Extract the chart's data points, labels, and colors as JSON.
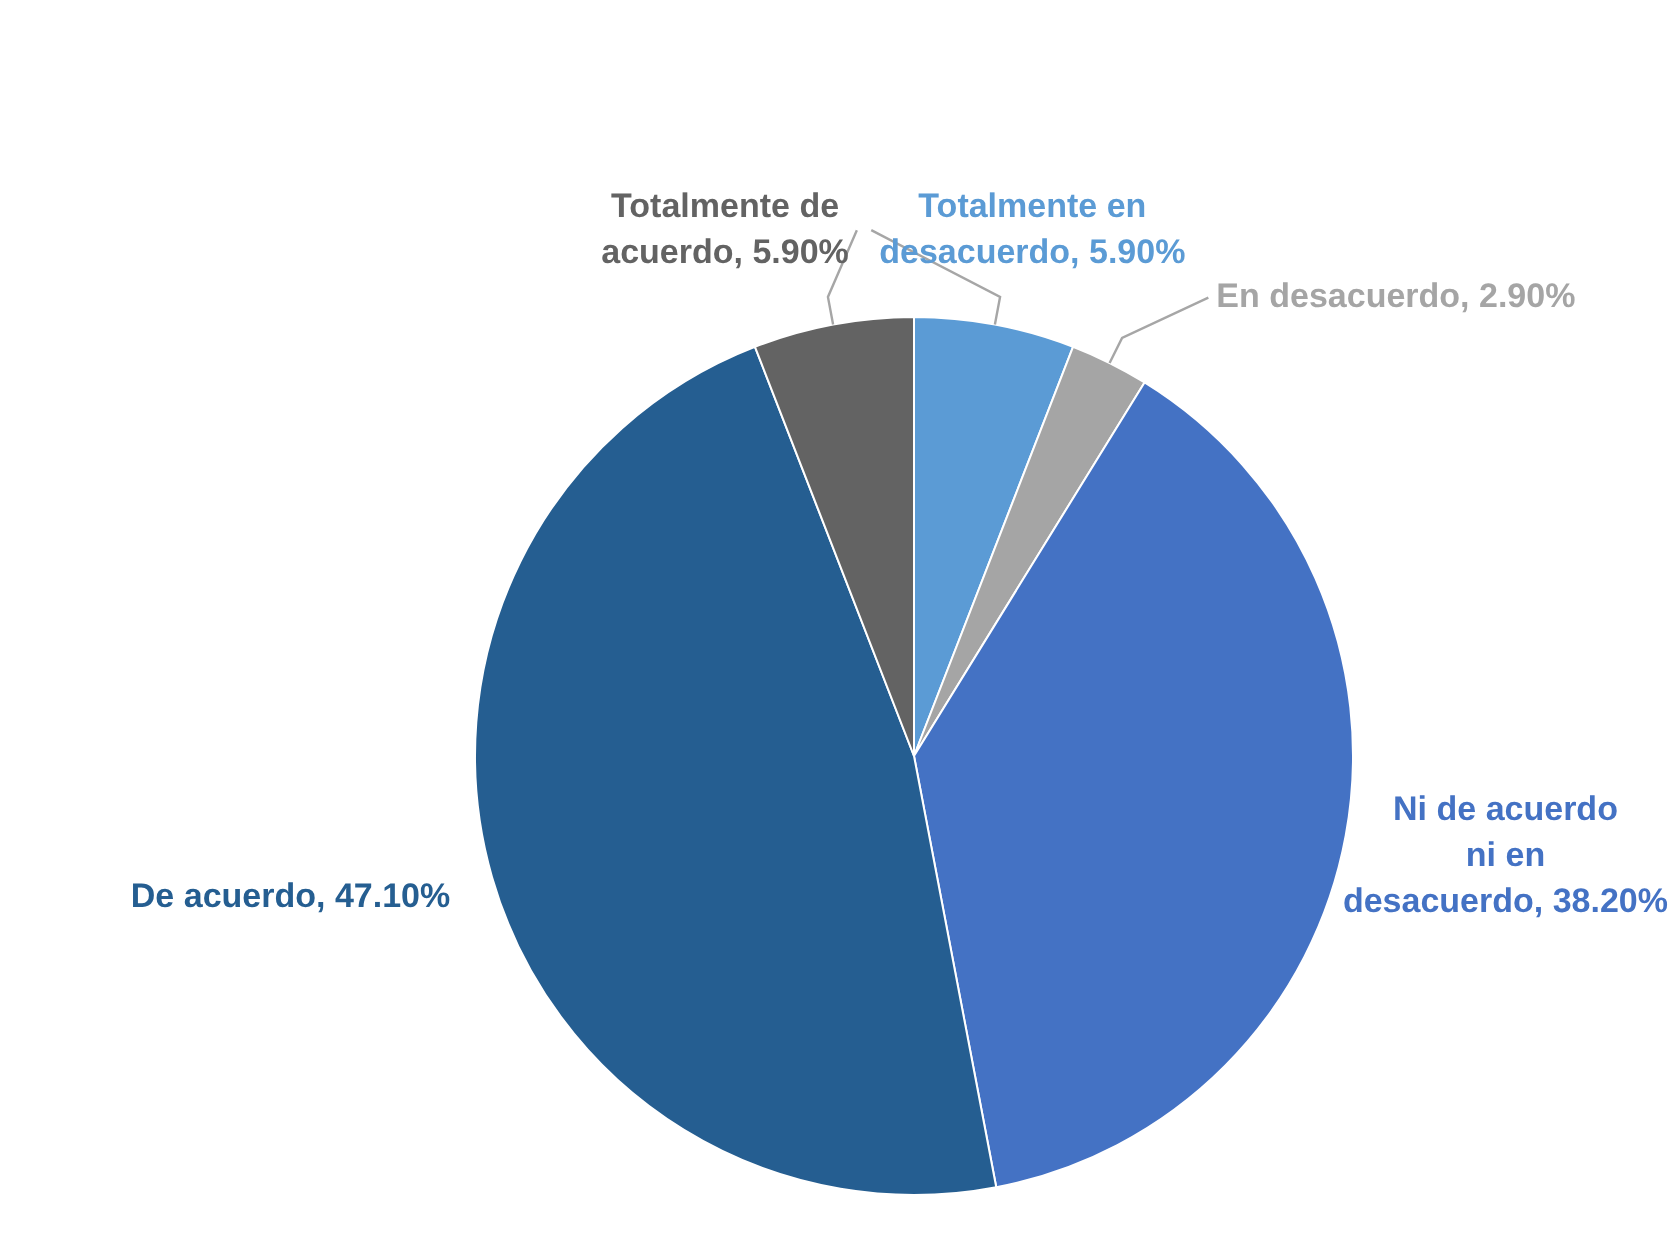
{
  "chart_data": {
    "type": "pie",
    "categories": [
      "Totalmente en desacuerdo",
      "En desacuerdo",
      "Ni de acuerdo ni en desacuerdo",
      "De acuerdo",
      "Totalmente de acuerdo"
    ],
    "values": [
      5.9,
      2.9,
      38.2,
      47.1,
      5.9
    ],
    "value_labels": [
      "5.90%",
      "2.90%",
      "38.20%",
      "47.10%",
      "5.90%"
    ],
    "colors": [
      "#5b9bd5",
      "#a5a5a5",
      "#4472c4",
      "#255e91",
      "#636363"
    ],
    "legend": false
  }
}
